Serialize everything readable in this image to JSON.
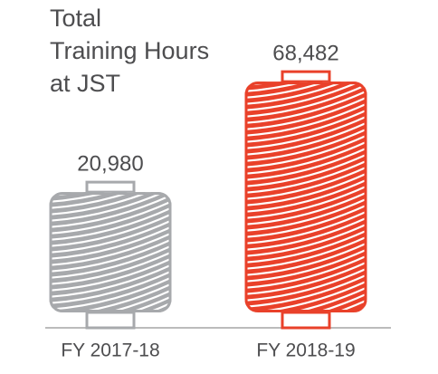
{
  "chart_data": {
    "type": "spool",
    "title_lines": [
      "Total",
      "Training Hours",
      "at JST"
    ],
    "categories": [
      "FY 2017-18",
      "FY 2018-19"
    ],
    "values": [
      20980,
      68482
    ],
    "value_labels": [
      "20,980",
      "68,482"
    ],
    "colors": [
      "#a7a9ac",
      "#e9412a"
    ]
  }
}
